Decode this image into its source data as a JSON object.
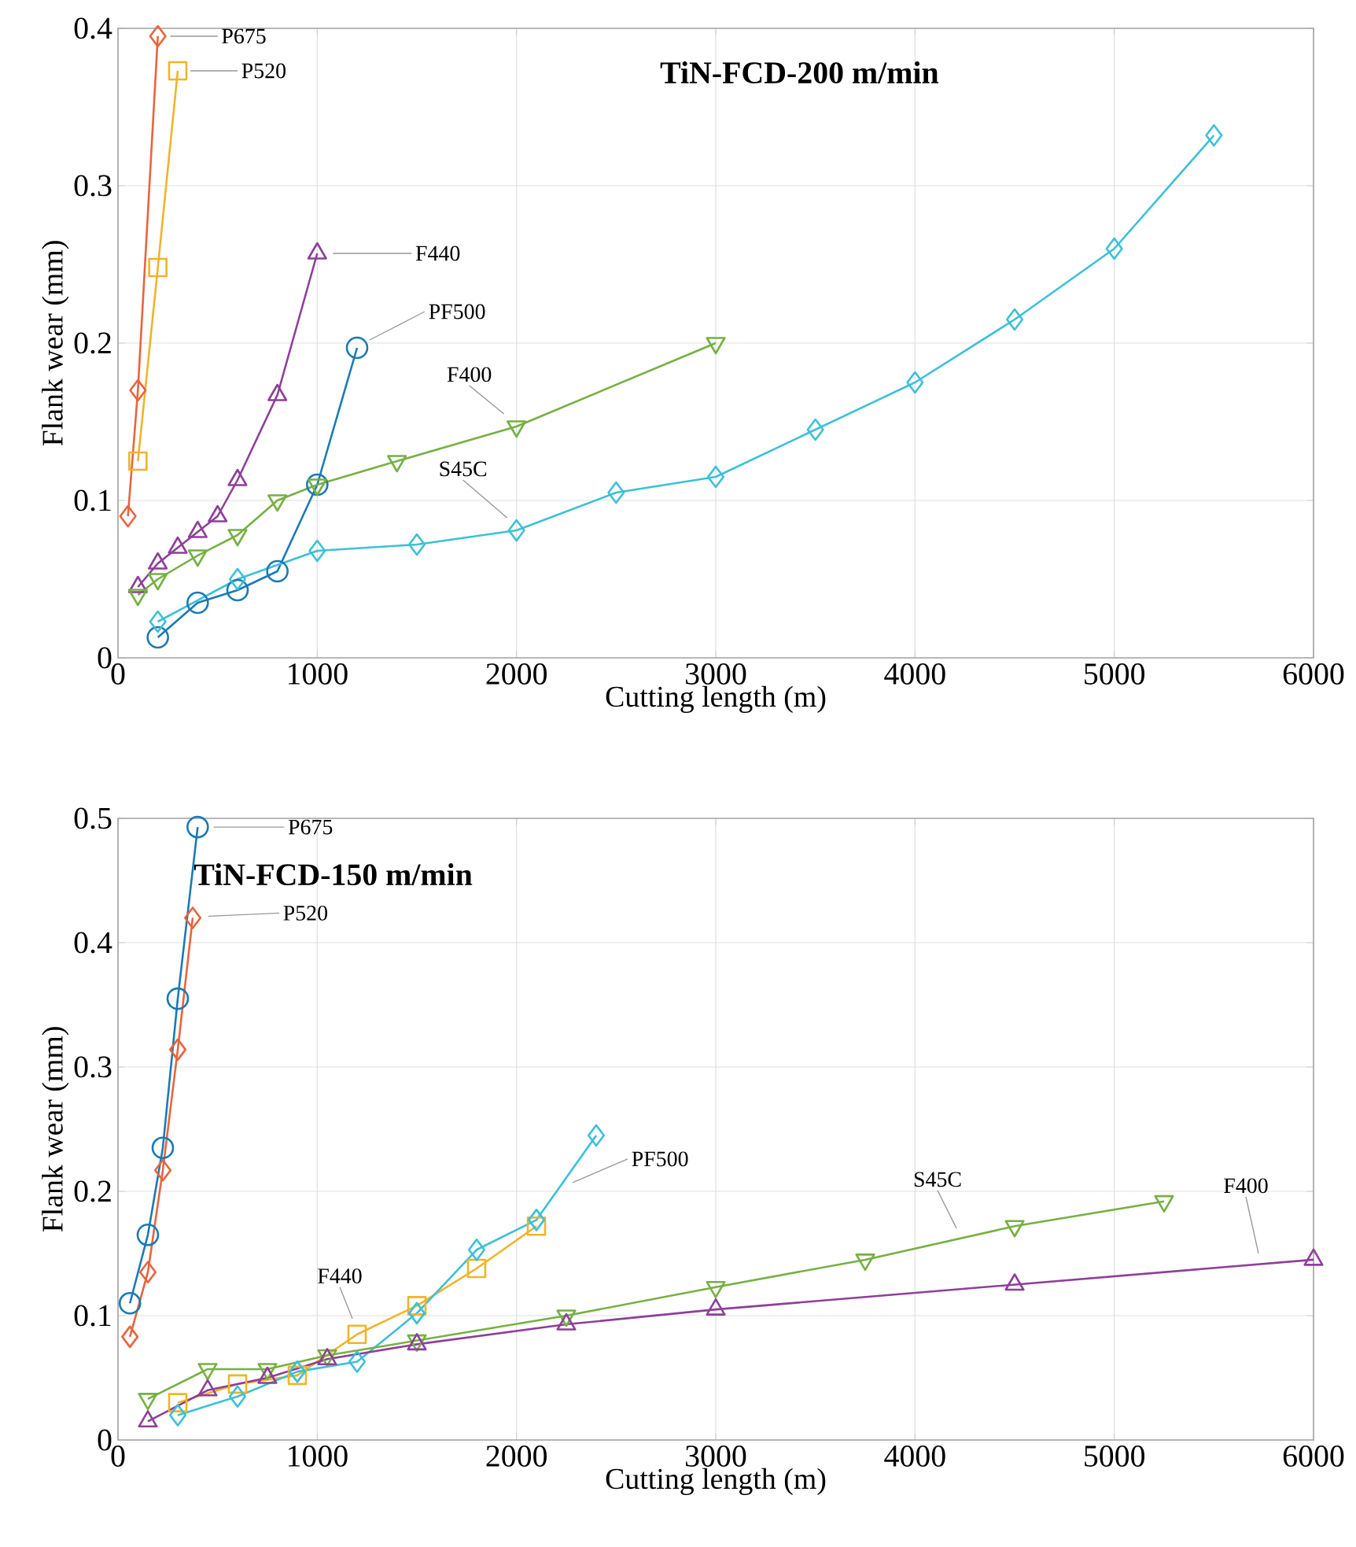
{
  "chart_data": [
    {
      "type": "line",
      "title": "TiN-FCD-200 m/min",
      "xlabel": "Cutting length (m)",
      "ylabel": "Flank wear (mm)",
      "xlim": [
        0,
        6000
      ],
      "ylim": [
        0,
        0.4
      ],
      "xticks": [
        0,
        1000,
        2000,
        3000,
        4000,
        5000,
        6000
      ],
      "yticks": [
        0,
        0.1,
        0.2,
        0.3,
        0.4
      ],
      "grid": true,
      "line_style": "solid",
      "series": [
        {
          "name": "P675",
          "color": "#e8643c",
          "marker": "diamond",
          "x": [
            50,
            100,
            200
          ],
          "values": [
            0.09,
            0.17,
            0.395
          ]
        },
        {
          "name": "P520",
          "color": "#f0b429",
          "marker": "square",
          "x": [
            100,
            200,
            300
          ],
          "values": [
            0.125,
            0.248,
            0.373
          ]
        },
        {
          "name": "F440",
          "color": "#8e3f9a",
          "marker": "triangle",
          "x": [
            100,
            200,
            300,
            400,
            500,
            600,
            800,
            1000
          ],
          "values": [
            0.045,
            0.06,
            0.07,
            0.08,
            0.09,
            0.113,
            0.167,
            0.257
          ]
        },
        {
          "name": "PF500",
          "color": "#1a7ab5",
          "marker": "circle",
          "x": [
            200,
            400,
            600,
            800,
            1000,
            1200
          ],
          "values": [
            0.013,
            0.035,
            0.043,
            0.055,
            0.11,
            0.197
          ]
        },
        {
          "name": "F400",
          "color": "#76b043",
          "marker": "triangle-down",
          "x": [
            100,
            200,
            400,
            600,
            800,
            1000,
            1400,
            2000,
            3000
          ],
          "values": [
            0.04,
            0.05,
            0.065,
            0.078,
            0.1,
            0.11,
            0.125,
            0.147,
            0.2
          ]
        },
        {
          "name": "S45C",
          "color": "#3cc0d8",
          "marker": "diamond",
          "x": [
            200,
            600,
            1000,
            1500,
            2000,
            2500,
            3000,
            3500,
            4000,
            4500,
            5000,
            5500
          ],
          "values": [
            0.023,
            0.05,
            0.068,
            0.072,
            0.081,
            0.105,
            0.115,
            0.145,
            0.175,
            0.215,
            0.26,
            0.332
          ]
        }
      ]
    },
    {
      "type": "line",
      "title": "TiN-FCD-150 m/min",
      "xlabel": "Cutting length (m)",
      "ylabel": "Flank wear (mm)",
      "xlim": [
        0,
        6000
      ],
      "ylim": [
        0,
        0.5
      ],
      "xticks": [
        0,
        1000,
        2000,
        3000,
        4000,
        5000,
        6000
      ],
      "yticks": [
        0,
        0.1,
        0.2,
        0.3,
        0.4,
        0.5
      ],
      "grid": true,
      "line_style": "solid",
      "series": [
        {
          "name": "P675",
          "color": "#1a7ab5",
          "marker": "circle",
          "x": [
            60,
            150,
            225,
            300,
            400
          ],
          "values": [
            0.11,
            0.165,
            0.235,
            0.355,
            0.493
          ]
        },
        {
          "name": "P520",
          "color": "#e8643c",
          "marker": "diamond",
          "x": [
            60,
            150,
            225,
            300,
            375
          ],
          "values": [
            0.083,
            0.135,
            0.217,
            0.314,
            0.42
          ]
        },
        {
          "name": "F440",
          "color": "#f0b429",
          "marker": "square",
          "x": [
            300,
            600,
            900,
            1200,
            1500,
            1800,
            2100
          ],
          "values": [
            0.03,
            0.045,
            0.052,
            0.085,
            0.108,
            0.138,
            0.172
          ]
        },
        {
          "name": "PF500",
          "color": "#3cc0d8",
          "marker": "diamond",
          "x": [
            300,
            600,
            900,
            1200,
            1500,
            1800,
            2100,
            2400
          ],
          "values": [
            0.02,
            0.035,
            0.055,
            0.063,
            0.102,
            0.153,
            0.177,
            0.245
          ]
        },
        {
          "name": "S45C",
          "color": "#76b043",
          "marker": "triangle-down",
          "x": [
            150,
            450,
            750,
            1050,
            1500,
            2250,
            3000,
            3750,
            4500,
            5250
          ],
          "values": [
            0.033,
            0.057,
            0.057,
            0.068,
            0.08,
            0.1,
            0.123,
            0.145,
            0.172,
            0.192
          ]
        },
        {
          "name": "F400",
          "color": "#8e3f9a",
          "marker": "triangle",
          "x": [
            150,
            450,
            750,
            1050,
            1500,
            2250,
            3000,
            4500,
            6000
          ],
          "values": [
            0.015,
            0.04,
            0.05,
            0.065,
            0.077,
            0.093,
            0.105,
            0.125,
            0.145
          ]
        }
      ]
    }
  ]
}
